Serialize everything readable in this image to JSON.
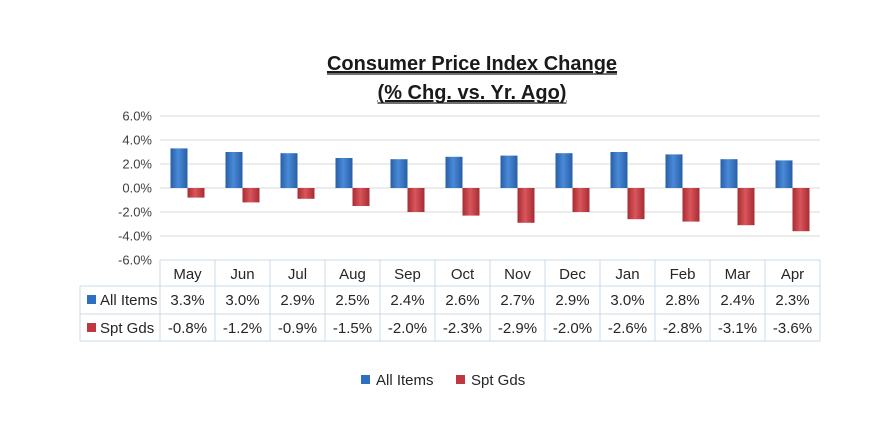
{
  "chart_data": {
    "type": "bar",
    "title": "Consumer Price Index Change",
    "subtitle": "(% Chg. vs. Yr. Ago)",
    "categories": [
      "May",
      "Jun",
      "Jul",
      "Aug",
      "Sep",
      "Oct",
      "Nov",
      "Dec",
      "Jan",
      "Feb",
      "Mar",
      "Apr"
    ],
    "series": [
      {
        "name": "All Items",
        "color": "#2f6fbf",
        "values": [
          3.3,
          3.0,
          2.9,
          2.5,
          2.4,
          2.6,
          2.7,
          2.9,
          3.0,
          2.8,
          2.4,
          2.3
        ],
        "labels": [
          "3.3%",
          "3.0%",
          "2.9%",
          "2.5%",
          "2.4%",
          "2.6%",
          "2.7%",
          "2.9%",
          "3.0%",
          "2.8%",
          "2.4%",
          "2.3%"
        ]
      },
      {
        "name": "Spt Gds",
        "color": "#c0383f",
        "values": [
          -0.8,
          -1.2,
          -0.9,
          -1.5,
          -2.0,
          -2.3,
          -2.9,
          -2.0,
          -2.6,
          -2.8,
          -3.1,
          -3.6
        ],
        "labels": [
          "-0.8%",
          "-1.2%",
          "-0.9%",
          "-1.5%",
          "-2.0%",
          "-2.3%",
          "-2.9%",
          "-2.0%",
          "-2.6%",
          "-2.8%",
          "-3.1%",
          "-3.6%"
        ]
      }
    ],
    "ylim": [
      -6.0,
      6.0
    ],
    "yticks": [
      6.0,
      4.0,
      2.0,
      0.0,
      -2.0,
      -4.0,
      -6.0
    ],
    "ytick_labels": [
      "6.0%",
      "4.0%",
      "2.0%",
      "0.0%",
      "-2.0%",
      "-4.0%",
      "-6.0%"
    ],
    "grid": true,
    "legend": "bottom",
    "data_table": true
  }
}
